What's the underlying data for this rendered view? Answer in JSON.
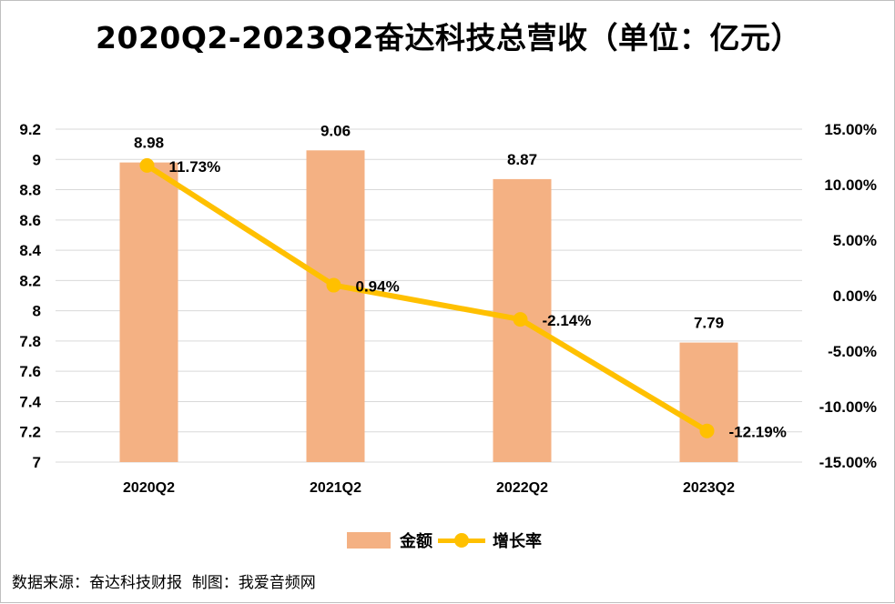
{
  "chart_data": {
    "type": "bar+line",
    "title": "2020Q2-2023Q2奋达科技总营收（单位：亿元）",
    "categories": [
      "2020Q2",
      "2021Q2",
      "2022Q2",
      "2023Q2"
    ],
    "series": [
      {
        "name": "金额",
        "type": "bar",
        "axis": "left",
        "values": [
          8.98,
          9.06,
          8.87,
          7.79
        ],
        "labels": [
          "8.98",
          "9.06",
          "8.87",
          "7.79"
        ],
        "color": "#f4b183"
      },
      {
        "name": "增长率",
        "type": "line",
        "axis": "right",
        "values": [
          11.73,
          0.94,
          -2.14,
          -12.19
        ],
        "labels": [
          "11.73%",
          "0.94%",
          "-2.14%",
          "-12.19%"
        ],
        "color": "#ffc000"
      }
    ],
    "left_axis": {
      "min": 7,
      "max": 9.2,
      "ticks": [
        7,
        7.2,
        7.4,
        7.6,
        7.8,
        8,
        8.2,
        8.4,
        8.6,
        8.8,
        9,
        9.2
      ],
      "tick_labels": [
        "7",
        "7.2",
        "7.4",
        "7.6",
        "7.8",
        "8",
        "8.2",
        "8.4",
        "8.6",
        "8.8",
        "9",
        "9.2"
      ]
    },
    "right_axis": {
      "min": -15,
      "max": 15,
      "ticks": [
        -15,
        -10,
        -5,
        0,
        5,
        10,
        15
      ],
      "tick_labels": [
        "-15.00%",
        "-10.00%",
        "-5.00%",
        "0.00%",
        "5.00%",
        "10.00%",
        "15.00%"
      ]
    },
    "grid": true,
    "legend": "bottom"
  },
  "source_note": "数据来源：奋达科技财报  制图：我爱音频网",
  "colors": {
    "bar": "#f4b183",
    "line": "#ffc000",
    "grid": "#d9d9d9"
  }
}
